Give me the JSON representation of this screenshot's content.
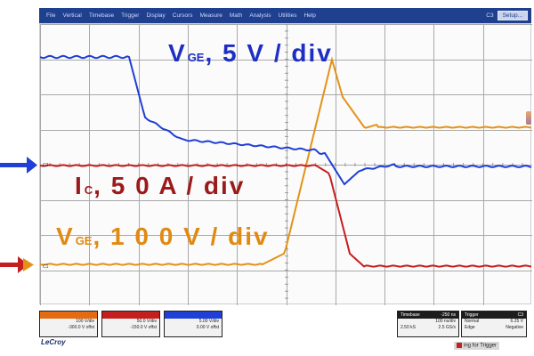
{
  "menu": {
    "items": [
      "File",
      "Vertical",
      "Timebase",
      "Trigger",
      "Display",
      "Cursors",
      "Measure",
      "Math",
      "Analysis",
      "Utilities",
      "Help"
    ],
    "channel_id": "C3",
    "setup_label": "Setup..."
  },
  "annotations": {
    "vge_top": {
      "main": "V",
      "sub": "GE",
      "rest": ", 5 V / div",
      "color": "#1e2ec4"
    },
    "ic": {
      "main": "I",
      "sub": "C",
      "rest": ", 5 0 A / div",
      "color": "#9b1b1b"
    },
    "vge_bottom": {
      "main": "V",
      "sub": "GE",
      "rest": ", 1 0 0 V / div",
      "color": "#e08a12"
    }
  },
  "channels": [
    {
      "id": "C1",
      "color": "#e36b12",
      "line1": "100 V/div",
      "line2": "-300.0 V offst"
    },
    {
      "id": "C2",
      "color": "#c51e1e",
      "line1": "50.0 V/div",
      "line2": "-150.0 V offst"
    },
    {
      "id": "C3",
      "color": "#1f3fd6",
      "line1": "5.00 V/div",
      "line2": "0.00 V offst"
    }
  ],
  "timebase": {
    "label": "Timebase",
    "value": "-250 ns",
    "line1_l": "",
    "line1_r": "100 ns/div",
    "line2_l": "2.50 kS",
    "line2_r": "2.5 GS/s"
  },
  "trigger": {
    "label": "Trigger",
    "value": "C3",
    "line1_l": "Normal",
    "line1_r": "6.25 V",
    "line2_l": "Edge",
    "line2_r": "Negative"
  },
  "status_text": "ing for Trigger",
  "brand": "LeCroy",
  "colors": {
    "blue": "#1f3fd6",
    "red": "#c51e1e",
    "orange": "#e39218",
    "grid": "#a9a9a9",
    "menubar": "#1f3f8f"
  }
}
